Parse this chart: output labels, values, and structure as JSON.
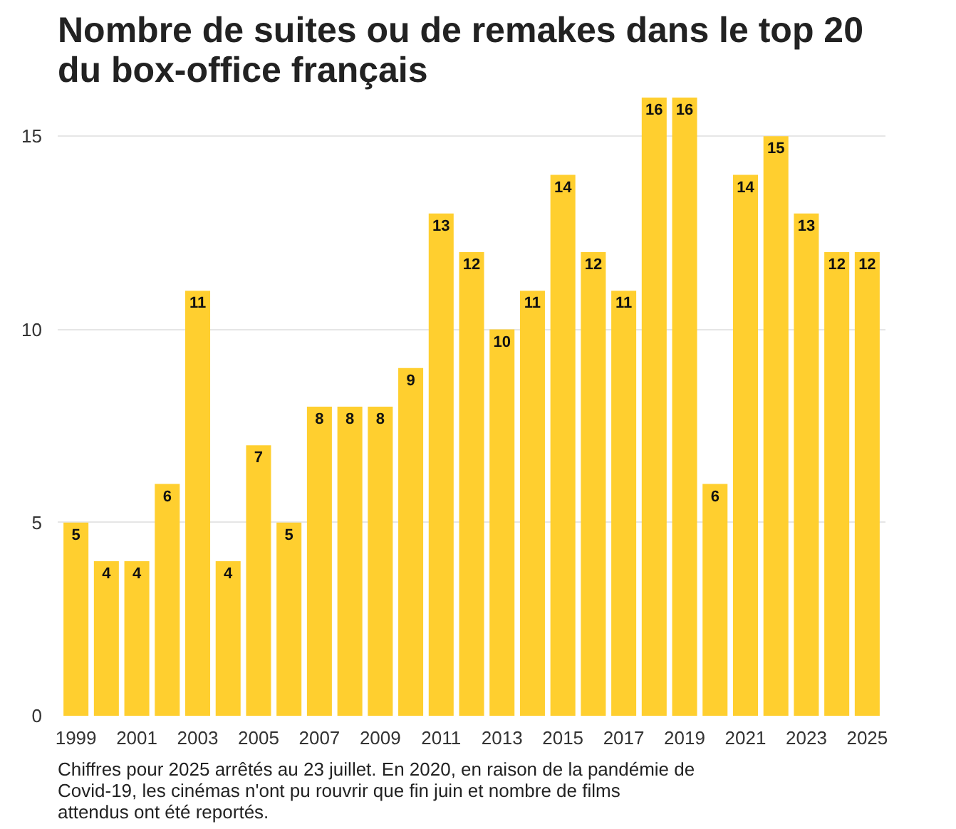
{
  "chart_data": {
    "type": "bar",
    "title": "Nombre de suites ou de remakes dans le top 20 du box-office français",
    "x": [
      1999,
      2000,
      2001,
      2002,
      2003,
      2004,
      2005,
      2006,
      2007,
      2008,
      2009,
      2010,
      2011,
      2012,
      2013,
      2014,
      2015,
      2016,
      2017,
      2018,
      2019,
      2020,
      2021,
      2022,
      2023,
      2024,
      2025
    ],
    "values": [
      5,
      4,
      4,
      6,
      11,
      4,
      7,
      5,
      8,
      8,
      8,
      9,
      13,
      12,
      10,
      11,
      14,
      12,
      11,
      16,
      16,
      6,
      14,
      15,
      13,
      12,
      12
    ],
    "color": "#ffcf2f",
    "xlim": [
      1998.4,
      2025.6
    ],
    "xticks": [
      1999,
      2001,
      2003,
      2005,
      2007,
      2009,
      2011,
      2013,
      2015,
      2017,
      2019,
      2021,
      2023,
      2025
    ],
    "ylim": [
      0,
      16
    ],
    "yticks": [
      0,
      5,
      10,
      15
    ],
    "grid": "y",
    "data_labels": true,
    "annotations": [
      "Chiffres pour 2025 arrêtés au 23 juillet. En 2020, en raison de la pandémie de Covid-19, les cinémas n'ont pu rouvrir que fin juin et nombre de films attendus ont été reportés."
    ]
  }
}
